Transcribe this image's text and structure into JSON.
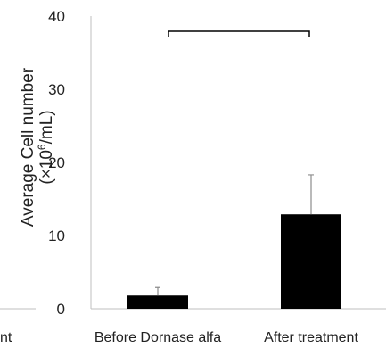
{
  "chart_data": {
    "type": "bar",
    "categories": [
      "Before Dornase alfa",
      "After treatment"
    ],
    "values": [
      1.8,
      12.9
    ],
    "error_bars": [
      1.1,
      5.4
    ],
    "ylabel_line1": "Average Cell number",
    "ylabel_line2_prefix": "(×10",
    "ylabel_line2_sup": "6",
    "ylabel_line2_suffix": "/mL)",
    "ylim": [
      0,
      40
    ],
    "yticks": [
      "0",
      "10",
      "20",
      "30",
      "40"
    ],
    "grid": false,
    "bar_color": "#000000",
    "significance_bracket": true,
    "cropped_left_label_fragment": "nt"
  }
}
